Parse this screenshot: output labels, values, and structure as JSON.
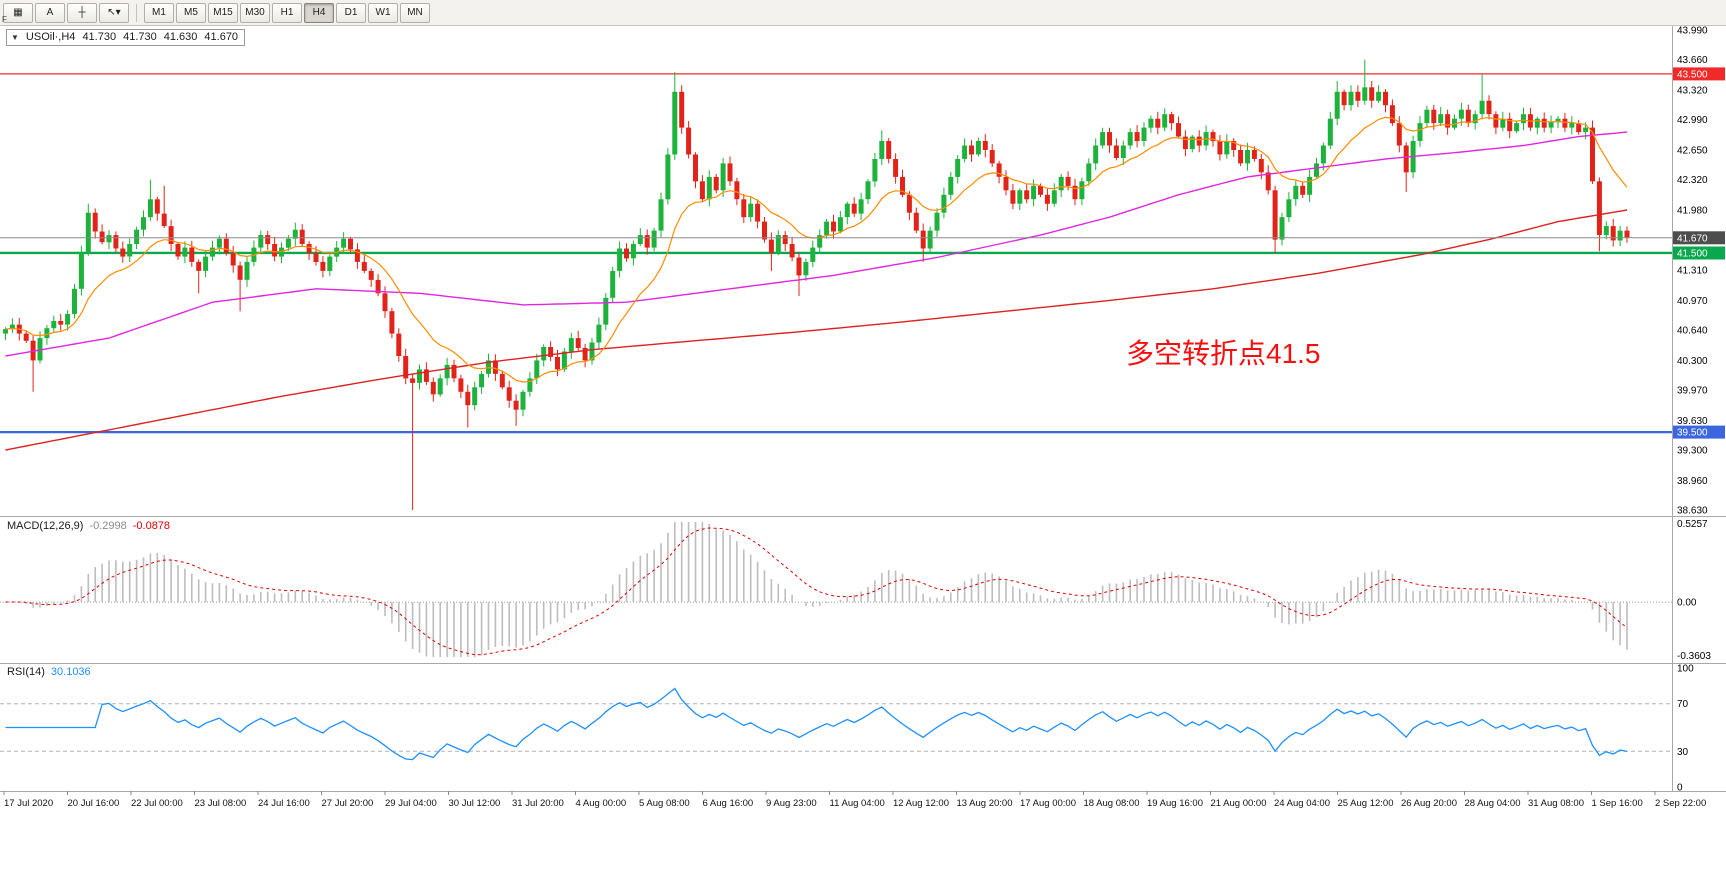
{
  "toolbar": {
    "f_label": "F",
    "left_buttons": [
      {
        "name": "chart-grid",
        "glyph": "▦"
      },
      {
        "name": "text-annotation",
        "glyph": "A"
      },
      {
        "name": "crosshair",
        "glyph": "┼"
      },
      {
        "name": "cursor-dropdown",
        "glyph": "↖▾"
      }
    ],
    "timeframes": [
      "M1",
      "M5",
      "M15",
      "M30",
      "H1",
      "H4",
      "D1",
      "W1",
      "MN"
    ],
    "active_timeframe": "H4"
  },
  "symbol_info": {
    "collapse_icon": "▼",
    "symbol_text": "USOil·,H4",
    "open": "41.730",
    "high": "41.730",
    "low": "41.630",
    "close": "41.670"
  },
  "annotation": {
    "text": "多空转折点41.5",
    "color": "#fb0d0d"
  },
  "hlines": [
    {
      "name": "resistance",
      "price": 43.5,
      "color": "#f22929",
      "width": 1.2
    },
    {
      "name": "pivot",
      "price": 41.5,
      "color": "#09a84e",
      "width": 2.4
    },
    {
      "name": "support",
      "price": 39.5,
      "color": "#3b66e0",
      "width": 2.2
    },
    {
      "name": "bid",
      "price": 41.67,
      "color": "#8c8c8c",
      "width": 1
    }
  ],
  "price_axis": {
    "labels": [
      "43.990",
      "43.660",
      "43.320",
      "42.990",
      "42.650",
      "42.320",
      "41.980",
      "41.310",
      "40.970",
      "40.640",
      "40.300",
      "39.970",
      "39.630",
      "39.300",
      "38.960",
      "38.630"
    ],
    "tags": [
      {
        "label": "43.500",
        "price": 43.5,
        "bg": "#f22929"
      },
      {
        "label": "41.670",
        "price": 41.67,
        "bg": "#4d4d4d"
      },
      {
        "label": "41.500",
        "price": 41.5,
        "bg": "#09a84e"
      },
      {
        "label": "39.500",
        "price": 39.5,
        "bg": "#3b66e0"
      }
    ]
  },
  "macd": {
    "label": "MACD(12,26,9)",
    "main_value": "-0.2998",
    "signal_value": "-0.0878",
    "params": {
      "fast": 12,
      "slow": 26,
      "signal": 9
    },
    "scale_labels": [
      "0.5257",
      "0.00",
      "-0.3603"
    ],
    "scale_max": 0.5257,
    "scale_min": -0.3603,
    "histogram_color": "#bdbdbd",
    "signal_color": "#e00000"
  },
  "rsi": {
    "label": "RSI(14)",
    "value": "30.1036",
    "period": 14,
    "levels": [
      70,
      30
    ],
    "scale_labels": [
      "100",
      "70",
      "30",
      "0"
    ],
    "line_color": "#1E90FF"
  },
  "time_axis": {
    "labels": [
      "17 Jul 2020",
      "20 Jul 16:00",
      "22 Jul 00:00",
      "23 Jul 08:00",
      "24 Jul 16:00",
      "27 Jul 20:00",
      "29 Jul 04:00",
      "30 Jul 12:00",
      "31 Jul 20:00",
      "4 Aug 00:00",
      "5 Aug 08:00",
      "6 Aug 16:00",
      "9 Aug 23:00",
      "11 Aug 04:00",
      "12 Aug 12:00",
      "13 Aug 20:00",
      "17 Aug 00:00",
      "18 Aug 08:00",
      "19 Aug 16:00",
      "21 Aug 00:00",
      "24 Aug 04:00",
      "25 Aug 12:00",
      "26 Aug 20:00",
      "28 Aug 04:00",
      "31 Aug 08:00",
      "1 Sep 16:00",
      "2 Sep 22:00"
    ]
  },
  "chart_data": {
    "type": "candlestick",
    "symbol": "USOil",
    "timeframe": "H4",
    "title": "USOil H4 with MA(fast/mid/slow), MACD(12,26,9), RSI(14)",
    "price_range": {
      "max": 43.99,
      "min": 38.63
    },
    "colors": {
      "up": "#1cb23b",
      "down": "#e2231a"
    },
    "first_open": 40.6,
    "closes": [
      40.65,
      40.7,
      40.6,
      40.52,
      40.3,
      40.55,
      40.66,
      40.74,
      40.7,
      40.82,
      41.1,
      41.5,
      41.95,
      41.74,
      41.62,
      41.7,
      41.55,
      41.46,
      41.6,
      41.76,
      41.9,
      42.1,
      41.94,
      41.8,
      41.6,
      41.46,
      41.56,
      41.4,
      41.3,
      41.46,
      41.56,
      41.66,
      41.5,
      41.36,
      41.2,
      41.4,
      41.56,
      41.7,
      41.6,
      41.46,
      41.56,
      41.66,
      41.76,
      41.6,
      41.5,
      41.4,
      41.3,
      41.46,
      41.56,
      41.66,
      41.54,
      41.4,
      41.3,
      41.2,
      41.05,
      40.85,
      40.6,
      40.35,
      40.1,
      40.05,
      40.2,
      40.06,
      39.92,
      40.1,
      40.25,
      40.1,
      39.95,
      39.8,
      40.0,
      40.15,
      40.3,
      40.15,
      40.0,
      39.85,
      39.75,
      39.95,
      40.1,
      40.3,
      40.45,
      40.34,
      40.2,
      40.4,
      40.55,
      40.44,
      40.3,
      40.5,
      40.7,
      41.0,
      41.3,
      41.55,
      41.44,
      41.6,
      41.7,
      41.56,
      41.75,
      42.1,
      42.6,
      43.3,
      42.9,
      42.6,
      42.3,
      42.1,
      42.35,
      42.2,
      42.5,
      42.3,
      42.1,
      41.9,
      42.05,
      41.85,
      41.65,
      41.5,
      41.7,
      41.6,
      41.45,
      41.25,
      41.4,
      41.56,
      41.7,
      41.85,
      41.74,
      41.9,
      42.05,
      41.94,
      42.1,
      42.3,
      42.55,
      42.75,
      42.55,
      42.35,
      42.15,
      41.95,
      41.75,
      41.55,
      41.75,
      41.95,
      42.15,
      42.35,
      42.55,
      42.7,
      42.6,
      42.75,
      42.65,
      42.5,
      42.35,
      42.2,
      42.05,
      42.2,
      42.1,
      42.25,
      42.15,
      42.05,
      42.2,
      42.35,
      42.25,
      42.1,
      42.3,
      42.5,
      42.7,
      42.85,
      42.7,
      42.56,
      42.7,
      42.85,
      42.75,
      42.9,
      43.0,
      42.9,
      43.05,
      42.95,
      42.8,
      42.66,
      42.8,
      42.7,
      42.85,
      42.75,
      42.6,
      42.75,
      42.65,
      42.5,
      42.65,
      42.55,
      42.4,
      42.2,
      41.65,
      41.9,
      42.1,
      42.25,
      42.15,
      42.35,
      42.5,
      42.7,
      43.0,
      43.3,
      43.15,
      43.3,
      43.2,
      43.35,
      43.2,
      43.3,
      43.15,
      42.95,
      42.7,
      42.4,
      42.75,
      42.95,
      43.1,
      42.95,
      43.05,
      42.9,
      43.0,
      43.1,
      42.95,
      43.05,
      43.2,
      43.05,
      42.9,
      43.0,
      42.86,
      42.95,
      43.05,
      42.9,
      43.0,
      42.9,
      42.96,
      43.0,
      42.9,
      42.95,
      42.85,
      42.9,
      42.3,
      41.7,
      41.8,
      41.64,
      41.75,
      41.67
    ],
    "wick_overrides": {
      "4": {
        "low": 39.95
      },
      "12": {
        "high": 42.05
      },
      "21": {
        "high": 42.32
      },
      "23": {
        "high": 42.25
      },
      "28": {
        "low": 41.05
      },
      "34": {
        "low": 40.85
      },
      "59": {
        "low": 38.63
      },
      "67": {
        "low": 39.55
      },
      "74": {
        "low": 39.57
      },
      "97": {
        "high": 43.52
      },
      "111": {
        "low": 41.3
      },
      "115": {
        "low": 41.02
      },
      "127": {
        "high": 42.87
      },
      "133": {
        "low": 41.4
      },
      "184": {
        "low": 41.5
      },
      "193": {
        "high": 43.42
      },
      "197": {
        "high": 43.66
      },
      "203": {
        "low": 42.18
      },
      "214": {
        "high": 43.5
      },
      "231": {
        "low": 41.52
      }
    },
    "ma_fast": {
      "period": 13,
      "color": "#ff8c00"
    },
    "ma_mid": {
      "color": "#e126e1"
    },
    "ma_slow": {
      "color": "#dd2222"
    },
    "ma_mid_anchors": [
      [
        0,
        40.35
      ],
      [
        15,
        40.55
      ],
      [
        30,
        40.95
      ],
      [
        45,
        41.1
      ],
      [
        60,
        41.05
      ],
      [
        75,
        40.92
      ],
      [
        90,
        40.95
      ],
      [
        105,
        41.1
      ],
      [
        120,
        41.25
      ],
      [
        135,
        41.45
      ],
      [
        150,
        41.7
      ],
      [
        160,
        41.9
      ],
      [
        170,
        42.15
      ],
      [
        180,
        42.35
      ],
      [
        190,
        42.45
      ],
      [
        200,
        42.55
      ],
      [
        210,
        42.62
      ],
      [
        220,
        42.7
      ],
      [
        228,
        42.8
      ],
      [
        235,
        42.85
      ]
    ],
    "ma_slow_anchors": [
      [
        0,
        39.3
      ],
      [
        20,
        39.6
      ],
      [
        40,
        39.9
      ],
      [
        55,
        40.1
      ],
      [
        70,
        40.28
      ],
      [
        85,
        40.42
      ],
      [
        100,
        40.52
      ],
      [
        115,
        40.62
      ],
      [
        130,
        40.73
      ],
      [
        145,
        40.85
      ],
      [
        160,
        40.97
      ],
      [
        175,
        41.1
      ],
      [
        190,
        41.27
      ],
      [
        205,
        41.48
      ],
      [
        215,
        41.65
      ],
      [
        225,
        41.85
      ],
      [
        235,
        41.98
      ]
    ]
  }
}
